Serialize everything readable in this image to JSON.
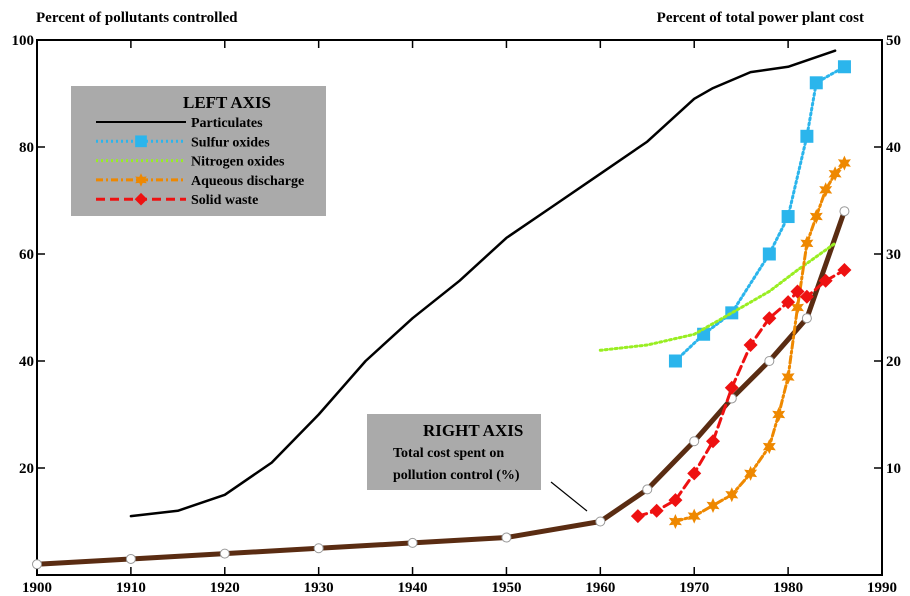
{
  "chart_data": {
    "type": "line",
    "left_axis_title": "Percent of pollutants controlled",
    "right_axis_title": "Percent of total power plant cost",
    "x_ticks": [
      1900,
      1910,
      1920,
      1930,
      1940,
      1950,
      1960,
      1970,
      1980,
      1990
    ],
    "xlim": [
      1900,
      1990
    ],
    "left_ticks": [
      20,
      40,
      60,
      80,
      100
    ],
    "left_ylim": [
      0,
      100
    ],
    "right_ticks": [
      10,
      20,
      30,
      40,
      50
    ],
    "right_ylim": [
      0,
      50
    ],
    "grid": false,
    "legend_left": {
      "header": "LEFT AXIS",
      "placement": "top-left",
      "background": "#aaaaaa"
    },
    "legend_right": {
      "header": "RIGHT AXIS",
      "lines": [
        "Total cost spent on",
        "pollution control (%)"
      ],
      "background": "#aaaaaa"
    },
    "left_series": [
      {
        "name": "Particulates",
        "color": "#000000",
        "style": "solid",
        "marker": "none",
        "x": [
          1910,
          1915,
          1920,
          1925,
          1930,
          1935,
          1940,
          1945,
          1950,
          1955,
          1960,
          1965,
          1970,
          1972,
          1976,
          1980,
          1985
        ],
        "y": [
          11,
          12,
          15,
          21,
          30,
          40,
          48,
          55,
          63,
          69,
          75,
          81,
          89,
          91,
          94,
          95,
          98
        ]
      },
      {
        "name": "Sulfur oxides",
        "color": "#2bb5ec",
        "style": "dotted",
        "marker": "square",
        "x": [
          1968,
          1971,
          1974,
          1978,
          1980,
          1982,
          1983,
          1986
        ],
        "y": [
          40,
          45,
          49,
          60,
          67,
          82,
          92,
          95
        ]
      },
      {
        "name": "Nitrogen oxides",
        "color": "#99ee22",
        "style": "dotted",
        "marker": "none",
        "x": [
          1960,
          1965,
          1970,
          1974,
          1978,
          1981,
          1985
        ],
        "y": [
          42,
          43,
          45,
          49,
          53,
          57,
          62
        ]
      },
      {
        "name": "Aqueous discharge",
        "color": "#ee8800",
        "style": "dashdot",
        "marker": "star",
        "x": [
          1968,
          1970,
          1972,
          1974,
          1976,
          1978,
          1979,
          1980,
          1981,
          1982,
          1983,
          1984,
          1985,
          1986
        ],
        "y": [
          10,
          11,
          13,
          15,
          19,
          24,
          30,
          37,
          50,
          62,
          67,
          72,
          75,
          77
        ]
      },
      {
        "name": "Solid waste",
        "color": "#ee1111",
        "style": "dashed",
        "marker": "diamond",
        "x": [
          1964,
          1966,
          1968,
          1970,
          1972,
          1974,
          1976,
          1978,
          1980,
          1981,
          1982,
          1984,
          1986
        ],
        "y": [
          11,
          12,
          14,
          19,
          25,
          35,
          43,
          48,
          51,
          53,
          52,
          55,
          57
        ]
      }
    ],
    "right_series": [
      {
        "name": "Total cost spent on pollution control (%)",
        "color": "#5a2c12",
        "style": "solid",
        "marker": "circle-open",
        "x": [
          1900,
          1910,
          1920,
          1930,
          1940,
          1950,
          1960,
          1965,
          1970,
          1974,
          1978,
          1982,
          1986
        ],
        "y": [
          1,
          1.5,
          2,
          2.5,
          3,
          3.5,
          5,
          8,
          12.5,
          16.5,
          20,
          24,
          34
        ]
      }
    ]
  }
}
